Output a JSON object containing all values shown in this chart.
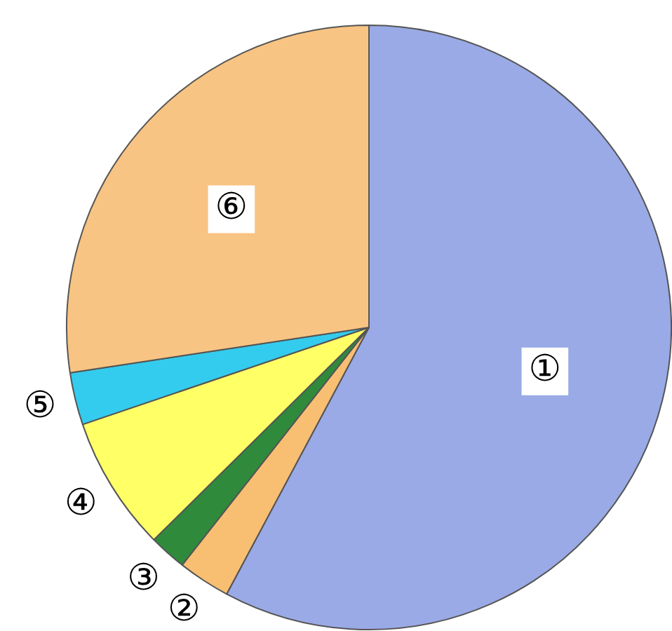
{
  "chart_data": {
    "type": "pie",
    "categories": [
      "①",
      "②",
      "③",
      "④",
      "⑤",
      "⑥"
    ],
    "values": [
      57.8,
      2.8,
      2.0,
      7.2,
      2.8,
      27.4
    ],
    "colors": [
      "#9aaae6",
      "#f8bf72",
      "#2f8a3c",
      "#ffff66",
      "#33ccee",
      "#f8c483"
    ],
    "legend": false
  }
}
